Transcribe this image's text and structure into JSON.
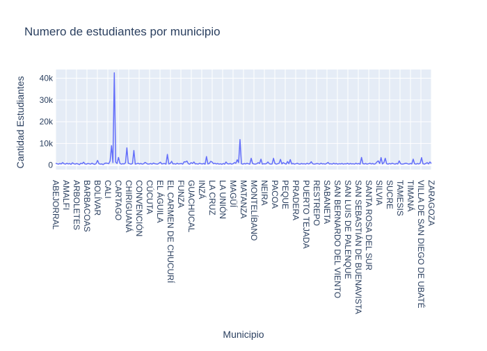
{
  "chart_data": {
    "type": "line",
    "title": "Numero de estudiantes por municipio",
    "xlabel": "Municipio",
    "ylabel": "Cantidad Estudiantes",
    "ylim": [
      -2000,
      44000
    ],
    "y_ticks": [
      0,
      10000,
      20000,
      30000,
      40000
    ],
    "y_tick_labels": [
      "0",
      "10k",
      "20k",
      "30k",
      "40k"
    ],
    "x_tick_labels": [
      "ABEJORRAL",
      "AMALFI",
      "ARBOLETES",
      "BARBACOAS",
      "BOLÍVAR",
      "CALI",
      "CARTAGO",
      "CHIRIGUANÁ",
      "CONVENCIÓN",
      "CÚCUTA",
      "EL ÁGUILA",
      "EL CARMEN DE CHUCURÍ",
      "FUNZA",
      "GUACHUCAL",
      "INZÁ",
      "LA CRUZ",
      "LA UNIÓN",
      "MAGÜÍ",
      "MATANZA",
      "MONTELÍBANO",
      "NEIRA",
      "PACOA",
      "PEQUE",
      "PRADERA",
      "PUERTO TEJADA",
      "RESTREPO",
      "SABANETA",
      "SAN BERNARDO DEL VIENTO",
      "SAN LUIS DE PALENQUE",
      "SAN SEBASTIÁN DE BUENAVISTA",
      "SANTA ROSA DEL SUR",
      "SILVIA",
      "SUCRE",
      "TAMESIS",
      "TIMANÁ",
      "VILLA DE SAN DIEGO DE UBATÉ",
      "ZARAGOZA"
    ],
    "series": [
      {
        "values": [
          900,
          700,
          500,
          800,
          600,
          1200,
          700,
          500,
          900,
          600,
          800,
          400,
          1100,
          700,
          500,
          800,
          600,
          300,
          900,
          700,
          1400,
          600,
          500,
          800,
          700,
          500,
          900,
          600,
          400,
          800,
          2200,
          700,
          500,
          600,
          300,
          800,
          1000,
          900,
          700,
          2000,
          9000,
          1200,
          42500,
          1400,
          800,
          3600,
          900,
          500,
          700,
          600,
          1100,
          8000,
          900,
          700,
          500,
          800,
          6800,
          500,
          700,
          900,
          600,
          800,
          500,
          700,
          1300,
          900,
          500,
          600,
          800,
          500,
          1000,
          700,
          600,
          500,
          900,
          1400,
          600,
          700,
          800,
          500,
          5000,
          600,
          800,
          1800,
          600,
          700,
          500,
          900,
          600,
          700,
          800,
          500,
          1600,
          1500,
          1900,
          700,
          500,
          1200,
          800,
          1500,
          600,
          700,
          500,
          900,
          700,
          600,
          800,
          500,
          4000,
          600,
          800,
          1800,
          1500,
          700,
          900,
          600,
          800,
          500,
          700,
          400,
          800,
          500,
          1500,
          700,
          600,
          800,
          500,
          700,
          1200,
          900,
          2500,
          1200,
          11800,
          700,
          500,
          800,
          600,
          900,
          700,
          500,
          3200,
          800,
          600,
          500,
          700,
          1200,
          800,
          2800,
          500,
          700,
          600,
          800,
          1500,
          700,
          500,
          600,
          3200,
          800,
          500,
          700,
          900,
          2700,
          600,
          1200,
          800,
          500,
          1700,
          700,
          2600,
          600,
          800,
          500,
          700,
          900,
          600,
          500,
          800,
          600,
          700,
          500,
          900,
          600,
          800,
          1600,
          700,
          500,
          600,
          800,
          700,
          500,
          900,
          600,
          700,
          500,
          800,
          1300,
          600,
          700,
          500,
          900,
          600,
          800,
          500,
          700,
          600,
          800,
          500,
          700,
          600,
          900,
          500,
          800,
          600,
          700,
          500,
          900,
          600,
          800,
          500,
          3600,
          700,
          600,
          800,
          500,
          700,
          900,
          600,
          800,
          500,
          700,
          1500,
          2000,
          800,
          3500,
          600,
          1200,
          3200,
          700,
          500,
          800,
          600,
          900,
          700,
          500,
          800,
          600,
          2000,
          700,
          500,
          600,
          800,
          900,
          700,
          500,
          800,
          600,
          2800,
          700,
          500,
          800,
          600,
          900,
          3500,
          700,
          500,
          800,
          1200,
          600,
          1500,
          800
        ]
      }
    ],
    "grid": true,
    "colors": {
      "line": "#636efa",
      "plot_bg": "#e5ecf6",
      "grid": "#ffffff",
      "text": "#2a3f5f"
    }
  }
}
